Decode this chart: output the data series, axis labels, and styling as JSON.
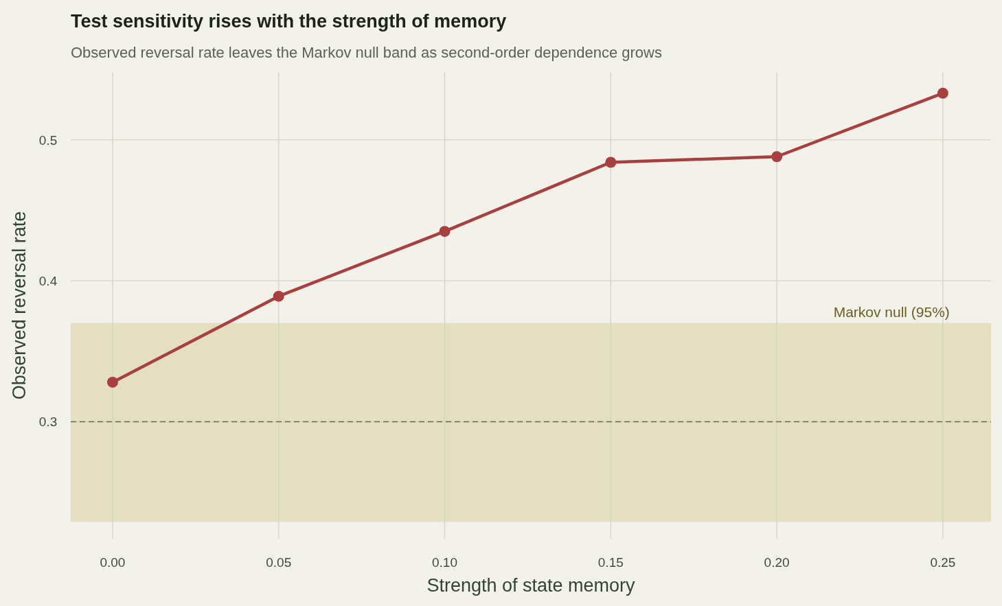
{
  "chart_data": {
    "type": "line",
    "title": "Test sensitivity rises with the strength of memory",
    "subtitle": "Observed reversal rate leaves the Markov null band as second-order dependence grows",
    "xlabel": "Strength of state memory",
    "ylabel": "Observed reversal rate",
    "x": [
      0,
      0.05,
      0.1,
      0.15,
      0.2,
      0.25
    ],
    "series": [
      {
        "color": "#a84040",
        "values": [
          0.328,
          0.389,
          0.435,
          0.484,
          0.488,
          0.533
        ]
      }
    ],
    "xlim": [
      -0.0126,
      0.2645
    ],
    "ylim": [
      0.217,
      0.548
    ],
    "xticks": [
      {
        "value": 0,
        "label": "0.00"
      },
      0.05,
      {
        "value": 0.1,
        "label": "0.10"
      },
      0.15,
      {
        "value": 0.2,
        "label": "0.20"
      },
      0.25
    ],
    "yticks": [
      0.3,
      0.4,
      0.5
    ],
    "grid": true,
    "marker": "circle",
    "line_style": "solid",
    "bands": [
      {
        "axis": "y",
        "from": 0.229,
        "to": 0.37,
        "label": "Markov null (95%)",
        "color": "#e4dfc0"
      }
    ],
    "ref_lines": [
      {
        "axis": "y",
        "value": 0.3,
        "color": "#6b6a3a",
        "line_style": "dashed"
      }
    ]
  }
}
